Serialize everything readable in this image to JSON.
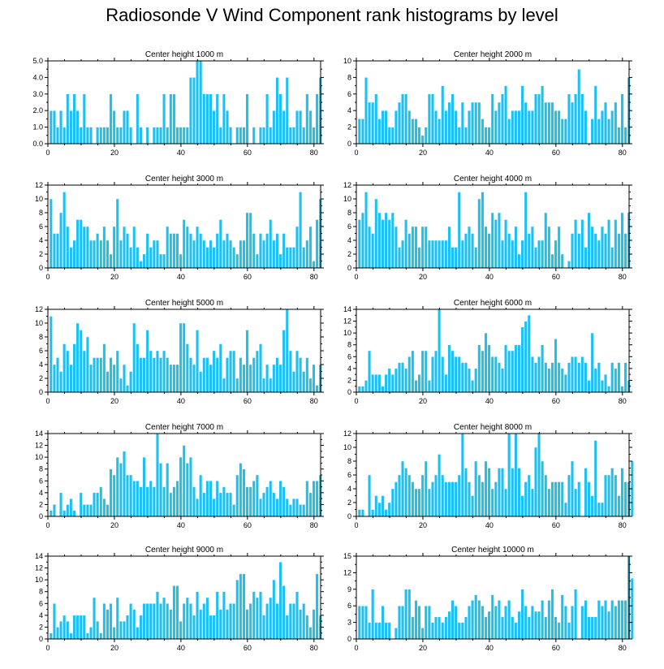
{
  "figure_title": "Radiosonde V Wind Component rank histograms by level",
  "colors": {
    "bar": "#1ec0f2",
    "bar_edge": "#ffffff",
    "axis": "#000000",
    "background": "#ffffff"
  },
  "chart_data": [
    {
      "type": "bar",
      "title": "Center height 1000 m",
      "ylim": [
        0,
        5
      ],
      "yticks": [
        "0.0",
        "1.0",
        "2.0",
        "3.0",
        "4.0",
        "5.0"
      ],
      "xticks": [
        "0",
        "20",
        "40",
        "60",
        "80"
      ],
      "xlim": [
        0,
        82
      ],
      "values": [
        2,
        2,
        1,
        2,
        1,
        3,
        2,
        3,
        2,
        1,
        3,
        1,
        1,
        0,
        1,
        1,
        1,
        1,
        3,
        2,
        1,
        1,
        2,
        2,
        1,
        0,
        3,
        1,
        0,
        1,
        0,
        1,
        1,
        1,
        3,
        1,
        3,
        3,
        1,
        1,
        1,
        1,
        4,
        4,
        5,
        5,
        3,
        3,
        3,
        2,
        3,
        1,
        3,
        2,
        1,
        0,
        1,
        1,
        1,
        3,
        0,
        1,
        0,
        1,
        1,
        3,
        1,
        2,
        4,
        3,
        2,
        4,
        1,
        1,
        2,
        2,
        1,
        3,
        2,
        1,
        3,
        4
      ]
    },
    {
      "type": "bar",
      "title": "Center height 2000 m",
      "ylim": [
        0,
        10
      ],
      "yticks": [
        "0",
        "2",
        "4",
        "6",
        "8",
        "10"
      ],
      "xticks": [
        "0",
        "20",
        "40",
        "60",
        "80"
      ],
      "xlim": [
        0,
        82
      ],
      "values": [
        3,
        3,
        8,
        5,
        5,
        6,
        3,
        4,
        4,
        2,
        2,
        4,
        5,
        6,
        6,
        4,
        3,
        3,
        2,
        1,
        2,
        6,
        6,
        4,
        3,
        7,
        4,
        5,
        6,
        4,
        2,
        5,
        2,
        4,
        5,
        5,
        5,
        3,
        2,
        2,
        6,
        4,
        5,
        6,
        7,
        3,
        4,
        4,
        4,
        7,
        5,
        4,
        4,
        6,
        6,
        7,
        5,
        5,
        5,
        4,
        4,
        3,
        3,
        6,
        5,
        6,
        9,
        6,
        4,
        0,
        3,
        7,
        3,
        4,
        5,
        3,
        4,
        5,
        2,
        6,
        2,
        8
      ]
    },
    {
      "type": "bar",
      "title": "Center height 3000 m",
      "ylim": [
        0,
        12
      ],
      "yticks": [
        "0",
        "2",
        "4",
        "6",
        "8",
        "10",
        "12"
      ],
      "xticks": [
        "0",
        "20",
        "40",
        "60",
        "80"
      ],
      "xlim": [
        0,
        82
      ],
      "values": [
        10,
        5,
        5,
        8,
        11,
        6,
        3,
        4,
        7,
        7,
        6,
        6,
        4,
        4,
        5,
        4,
        6,
        4,
        2,
        6,
        10,
        4,
        6,
        5,
        3,
        6,
        3,
        1,
        2,
        5,
        3,
        4,
        4,
        2,
        2,
        6,
        5,
        5,
        5,
        2,
        7,
        6,
        5,
        4,
        6,
        5,
        4,
        3,
        4,
        3,
        5,
        7,
        4,
        5,
        4,
        3,
        2,
        4,
        4,
        8,
        8,
        5,
        2,
        5,
        4,
        5,
        7,
        4,
        5,
        2,
        5,
        3,
        3,
        3,
        6,
        11,
        3,
        4,
        6,
        1,
        7,
        10
      ]
    },
    {
      "type": "bar",
      "title": "Center height 4000 m",
      "ylim": [
        0,
        12
      ],
      "yticks": [
        "0",
        "2",
        "4",
        "6",
        "8",
        "10",
        "12"
      ],
      "xticks": [
        "0",
        "20",
        "40",
        "60",
        "80"
      ],
      "xlim": [
        0,
        82
      ],
      "values": [
        7,
        8,
        11,
        6,
        5,
        10,
        8,
        7,
        8,
        7,
        8,
        6,
        3,
        4,
        7,
        5,
        6,
        6,
        3,
        6,
        6,
        4,
        4,
        4,
        4,
        4,
        4,
        6,
        3,
        3,
        11,
        4,
        5,
        6,
        5,
        3,
        10,
        11,
        6,
        5,
        8,
        7,
        8,
        4,
        7,
        5,
        4,
        6,
        2,
        4,
        11,
        5,
        6,
        3,
        4,
        4,
        8,
        6,
        2,
        4,
        6,
        2,
        0,
        1,
        5,
        7,
        5,
        7,
        3,
        8,
        6,
        5,
        4,
        6,
        5,
        7,
        3,
        7,
        5,
        8,
        5,
        8
      ]
    },
    {
      "type": "bar",
      "title": "Center height 5000 m",
      "ylim": [
        0,
        12
      ],
      "yticks": [
        "0",
        "2",
        "4",
        "6",
        "8",
        "10",
        "12"
      ],
      "xticks": [
        "0",
        "20",
        "40",
        "60",
        "80"
      ],
      "xlim": [
        0,
        82
      ],
      "values": [
        11,
        4,
        5,
        3,
        7,
        6,
        4,
        7,
        10,
        9,
        6,
        8,
        4,
        5,
        5,
        5,
        7,
        3,
        5,
        4,
        6,
        2,
        4,
        1,
        3,
        10,
        7,
        5,
        5,
        9,
        6,
        5,
        6,
        5,
        6,
        5,
        4,
        4,
        4,
        10,
        10,
        7,
        5,
        4,
        9,
        3,
        5,
        5,
        4,
        6,
        5,
        7,
        2,
        5,
        6,
        6,
        2,
        5,
        4,
        9,
        4,
        5,
        6,
        7,
        2,
        4,
        2,
        4,
        5,
        4,
        9,
        12,
        6,
        3,
        6,
        5,
        3,
        5,
        2,
        4,
        1,
        4
      ]
    },
    {
      "type": "bar",
      "title": "Center height 6000 m",
      "ylim": [
        0,
        14
      ],
      "yticks": [
        "0",
        "2",
        "4",
        "6",
        "8",
        "10",
        "12",
        "14"
      ],
      "xticks": [
        "0",
        "20",
        "40",
        "60",
        "80"
      ],
      "xlim": [
        0,
        82
      ],
      "values": [
        1,
        1,
        2,
        7,
        3,
        3,
        3,
        1,
        3,
        4,
        3,
        4,
        5,
        5,
        4,
        6,
        7,
        2,
        3,
        7,
        7,
        2,
        6,
        7,
        14,
        6,
        3,
        8,
        7,
        6,
        6,
        5,
        5,
        4,
        2,
        4,
        8,
        7,
        10,
        8,
        6,
        6,
        5,
        4,
        8,
        7,
        7,
        8,
        8,
        11,
        12,
        13,
        6,
        5,
        6,
        8,
        5,
        4,
        5,
        9,
        5,
        4,
        3,
        5,
        6,
        6,
        5,
        6,
        5,
        2,
        10,
        4,
        5,
        2,
        3,
        1,
        5,
        4,
        5,
        1,
        5,
        2
      ]
    },
    {
      "type": "bar",
      "title": "Center height 7000 m",
      "ylim": [
        0,
        14
      ],
      "yticks": [
        "0",
        "2",
        "4",
        "6",
        "8",
        "10",
        "12",
        "14"
      ],
      "xticks": [
        "0",
        "20",
        "40",
        "60",
        "80"
      ],
      "xlim": [
        0,
        82
      ],
      "values": [
        1,
        2,
        0,
        4,
        1,
        2,
        3,
        1,
        0,
        4,
        2,
        2,
        2,
        4,
        4,
        5,
        3,
        2,
        8,
        7,
        10,
        9,
        11,
        7,
        7,
        6,
        6,
        5,
        10,
        5,
        6,
        5,
        14,
        9,
        5,
        9,
        4,
        5,
        6,
        10,
        12,
        9,
        10,
        5,
        3,
        7,
        4,
        6,
        6,
        3,
        6,
        4,
        5,
        4,
        4,
        2,
        7,
        9,
        8,
        5,
        5,
        6,
        7,
        3,
        4,
        5,
        6,
        4,
        3,
        6,
        5,
        3,
        2,
        3,
        3,
        2,
        2,
        6,
        4,
        6,
        6,
        7
      ]
    },
    {
      "type": "bar",
      "title": "Center height 8000 m",
      "ylim": [
        0,
        12
      ],
      "yticks": [
        "0",
        "2",
        "4",
        "6",
        "8",
        "10",
        "12"
      ],
      "xticks": [
        "0",
        "20",
        "40",
        "60",
        "80"
      ],
      "xlim": [
        0,
        82
      ],
      "values": [
        1,
        1,
        0,
        6,
        1,
        3,
        2,
        3,
        1,
        2,
        4,
        5,
        6,
        8,
        7,
        6,
        5,
        4,
        4,
        6,
        8,
        4,
        5,
        6,
        9,
        6,
        5,
        5,
        5,
        5,
        6,
        12,
        7,
        5,
        3,
        8,
        6,
        5,
        8,
        7,
        4,
        5,
        7,
        7,
        4,
        12,
        7,
        12,
        7,
        3,
        5,
        6,
        4,
        10,
        12,
        8,
        6,
        4,
        5,
        5,
        5,
        5,
        2,
        6,
        8,
        4,
        5,
        0,
        7,
        5,
        3,
        11,
        2,
        2,
        6,
        6,
        7,
        6,
        3,
        7,
        5,
        5,
        8
      ]
    },
    {
      "type": "bar",
      "title": "Center height 9000 m",
      "ylim": [
        0,
        14
      ],
      "yticks": [
        "0",
        "2",
        "4",
        "6",
        "8",
        "10",
        "12",
        "14"
      ],
      "xticks": [
        "0",
        "20",
        "40",
        "60",
        "80"
      ],
      "xlim": [
        0,
        82
      ],
      "values": [
        1,
        6,
        2,
        3,
        4,
        3,
        1,
        4,
        4,
        4,
        4,
        1,
        2,
        7,
        3,
        1,
        6,
        5,
        6,
        2,
        7,
        3,
        3,
        4,
        6,
        5,
        2,
        4,
        6,
        6,
        6,
        6,
        8,
        6,
        7,
        6,
        5,
        9,
        9,
        3,
        6,
        7,
        6,
        4,
        8,
        5,
        6,
        7,
        4,
        4,
        8,
        5,
        8,
        5,
        6,
        6,
        10,
        11,
        11,
        5,
        6,
        8,
        7,
        8,
        4,
        6,
        7,
        10,
        6,
        13,
        9,
        4,
        6,
        6,
        8,
        5,
        6,
        4,
        2,
        5,
        11,
        4
      ]
    },
    {
      "type": "bar",
      "title": "Center height 10000 m",
      "ylim": [
        0,
        15
      ],
      "yticks": [
        "0",
        "3",
        "6",
        "9",
        "12",
        "15"
      ],
      "xticks": [
        "0",
        "20",
        "40",
        "60",
        "80"
      ],
      "xlim": [
        0,
        82
      ],
      "values": [
        6,
        6,
        6,
        3,
        9,
        3,
        3,
        6,
        3,
        3,
        0,
        2,
        6,
        6,
        9,
        9,
        4,
        7,
        6,
        2,
        6,
        6,
        3,
        4,
        4,
        3,
        4,
        5,
        7,
        6,
        3,
        3,
        4,
        6,
        7,
        8,
        7,
        6,
        4,
        5,
        8,
        6,
        7,
        4,
        6,
        7,
        4,
        3,
        5,
        9,
        6,
        4,
        6,
        5,
        5,
        7,
        4,
        7,
        9,
        4,
        3,
        8,
        6,
        3,
        6,
        9,
        0,
        6,
        7,
        4,
        4,
        4,
        7,
        6,
        7,
        5,
        7,
        6,
        7,
        7,
        7,
        15,
        11
      ]
    }
  ]
}
